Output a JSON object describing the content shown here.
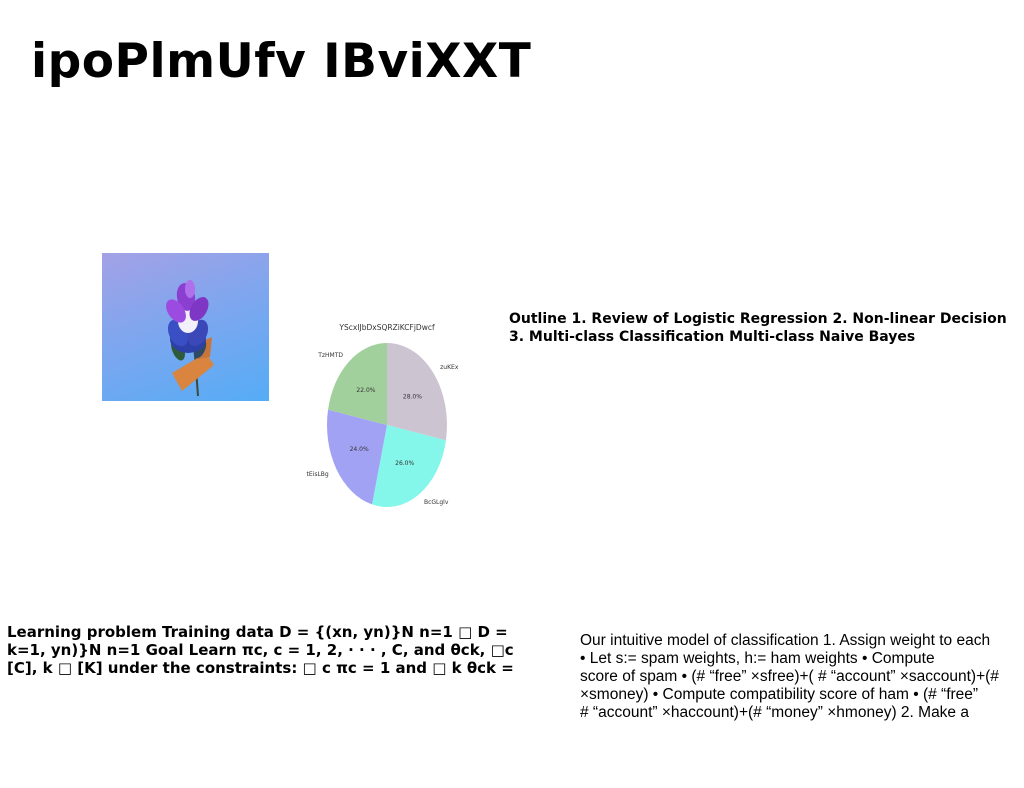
{
  "slide": {
    "title": "ipoPlmUfv IBviXXT"
  },
  "outline": {
    "lines": [
      "Outline 1. Review of Logistic Regression 2. Non-linear Decision",
      "3. Multi-class Classification Multi-class Naive Bayes"
    ]
  },
  "learning_problem": {
    "lines": [
      "Learning problem Training data D = {(xn, yn)}N n=1 □ D =",
      "k=1, yn)}N n=1 Goal Learn πc, c = 1, 2, · · · , C, and θck, □c",
      "[C], k □ [K] under the constraints: □ c πc = 1 and □ k θck ="
    ]
  },
  "intuitive_model": {
    "lines": [
      "Our intuitive model of classification 1. Assign weight to each",
      "• Let s:= spam weights, h:= ham weights • Compute",
      "score of spam • (# “free” ×sfree)+( # “account” ×saccount)+(#",
      "×smoney) • Compute compatibility score of ham • (# “free”",
      "# “account” ×haccount)+(# “money” ×hmoney) 2. Make a"
    ]
  },
  "chart_data": {
    "type": "pie",
    "title": "YScxIJbDxSQRZiKCFjDwcf",
    "slices": [
      {
        "label": "zuKEx",
        "value": 28.0,
        "pct_label": "28.0%",
        "color": "#cdc4d2"
      },
      {
        "label": "BcGLglv",
        "value": 26.0,
        "pct_label": "26.0%",
        "color": "#84f6ea"
      },
      {
        "label": "tEisLBg",
        "value": 24.0,
        "pct_label": "24.0%",
        "color": "#a2a2f4"
      },
      {
        "label": "TzHMTD",
        "value": 22.0,
        "pct_label": "22.0%",
        "color": "#a2d09c"
      }
    ],
    "start": "top",
    "direction": "clockwise"
  }
}
